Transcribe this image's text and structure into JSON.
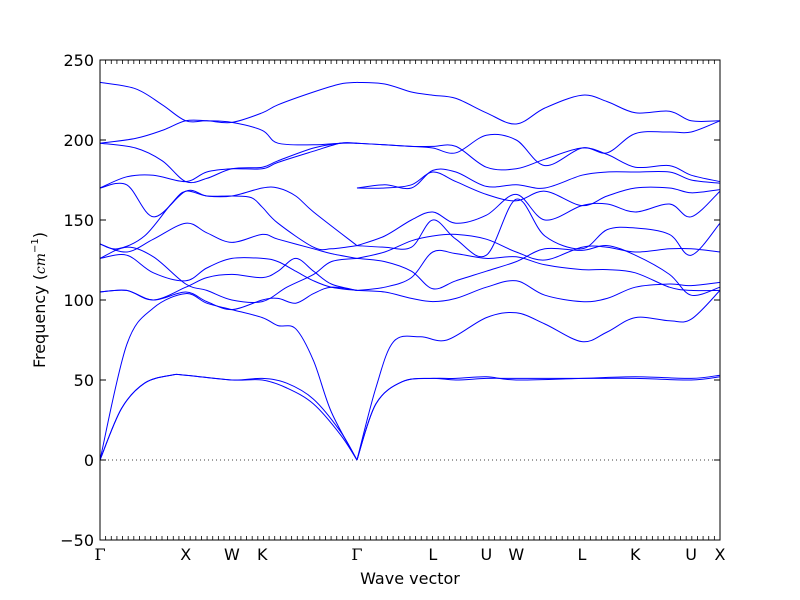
{
  "chart_data": {
    "type": "line",
    "xlabel": "Wave vector",
    "ylabel_text": "Frequency (",
    "ylabel_unit": "cm",
    "ylabel_exp": "−1",
    "ylabel_close": ")",
    "ylim": [
      -50,
      250
    ],
    "yticks": [
      -50,
      0,
      50,
      100,
      150,
      200,
      250
    ],
    "ytick_labels": [
      "−50",
      "0",
      "50",
      "100",
      "150",
      "200",
      "250"
    ],
    "x_range": [
      0,
      3.484
    ],
    "high_symmetry_points": [
      {
        "label": "Γ",
        "x": 0.0
      },
      {
        "label": "X",
        "x": 0.482
      },
      {
        "label": "W",
        "x": 0.741
      },
      {
        "label": "K",
        "x": 0.912
      },
      {
        "label": "Γ",
        "x": 1.444
      },
      {
        "label": "L",
        "x": 1.87
      },
      {
        "label": "U",
        "x": 2.171
      },
      {
        "label": "W",
        "x": 2.339
      },
      {
        "label": "L",
        "x": 2.708
      },
      {
        "label": "K",
        "x": 3.008
      },
      {
        "label": "U",
        "x": 3.322
      },
      {
        "label": "X",
        "x": 3.484
      }
    ],
    "zero_line": true,
    "line_color": "#0000ff",
    "series": [
      {
        "x": [
          0.0,
          0.12,
          0.25,
          0.4,
          0.482,
          0.741,
          0.912,
          1.05,
          1.2,
          1.35,
          1.444
        ],
        "values": [
          0,
          32,
          48,
          53,
          53,
          50,
          51,
          48,
          38,
          18,
          0
        ]
      },
      {
        "x": [
          0.0,
          0.12,
          0.25,
          0.4,
          0.482,
          0.741,
          0.912,
          1.05,
          1.2,
          1.35,
          1.444
        ],
        "values": [
          0,
          32,
          48,
          53,
          53,
          50,
          50,
          45,
          35,
          16,
          0
        ]
      },
      {
        "x": [
          0.0,
          0.15,
          0.3,
          0.482,
          0.6,
          0.741,
          0.912,
          1.0,
          1.1,
          1.2,
          1.3,
          1.444
        ],
        "values": [
          0,
          72,
          95,
          104,
          98,
          94,
          89,
          84,
          82,
          62,
          30,
          0
        ]
      },
      {
        "x": [
          1.444,
          1.55,
          1.7,
          1.87,
          2.0,
          2.171,
          2.339,
          2.708,
          3.008,
          3.322,
          3.484
        ],
        "values": [
          0,
          35,
          49,
          51,
          51,
          52,
          50,
          51,
          52,
          51,
          53
        ]
      },
      {
        "x": [
          1.444,
          1.55,
          1.7,
          1.87,
          2.0,
          2.171,
          2.339,
          2.708,
          3.008,
          3.322,
          3.484
        ],
        "values": [
          0,
          35,
          49,
          51,
          50,
          51,
          51,
          51,
          51,
          50,
          52
        ]
      },
      {
        "x": [
          1.444,
          1.55,
          1.65,
          1.8,
          1.95,
          2.171,
          2.339,
          2.5,
          2.708,
          2.85,
          3.008,
          3.2,
          3.322,
          3.484
        ],
        "values": [
          0,
          45,
          74,
          77,
          75,
          89,
          92,
          85,
          74,
          80,
          89,
          87,
          88,
          106
        ]
      },
      {
        "x": [
          0.0,
          0.15,
          0.3,
          0.482,
          0.6,
          0.741,
          0.912,
          1.0,
          1.1,
          1.2,
          1.3,
          1.444
        ],
        "values": [
          105,
          106,
          100,
          108,
          114,
          116,
          114,
          118,
          126,
          118,
          110,
          106
        ]
      },
      {
        "x": [
          0.0,
          0.15,
          0.3,
          0.482,
          0.6,
          0.741,
          0.912,
          1.0,
          1.1,
          1.2,
          1.3,
          1.444
        ],
        "values": [
          105,
          106,
          100,
          105,
          99,
          94,
          100,
          101,
          98,
          104,
          108,
          106
        ]
      },
      {
        "x": [
          0.0,
          0.15,
          0.3,
          0.482,
          0.6,
          0.741,
          0.912,
          1.0,
          1.1,
          1.2,
          1.3,
          1.444
        ],
        "values": [
          126,
          128,
          117,
          112,
          120,
          126,
          126,
          124,
          118,
          112,
          108,
          106
        ]
      },
      {
        "x": [
          0.0,
          0.15,
          0.3,
          0.482,
          0.6,
          0.741,
          0.912,
          1.05,
          1.2,
          1.3,
          1.444
        ],
        "values": [
          126,
          133,
          127,
          110,
          106,
          100,
          99,
          108,
          116,
          124,
          126
        ]
      },
      {
        "x": [
          0.0,
          0.15,
          0.3,
          0.482,
          0.6,
          0.741,
          0.912,
          1.0,
          1.2,
          1.3,
          1.444
        ],
        "values": [
          135,
          130,
          138,
          148,
          142,
          136,
          141,
          138,
          132,
          129,
          126
        ]
      },
      {
        "x": [
          0.0,
          0.1,
          0.25,
          0.4,
          0.482,
          0.6,
          0.741,
          0.85,
          0.912,
          1.0,
          1.2,
          1.3,
          1.444
        ],
        "values": [
          135,
          132,
          140,
          160,
          168,
          165,
          165,
          164,
          158,
          148,
          133,
          132,
          134
        ]
      },
      {
        "x": [
          0.0,
          0.15,
          0.3,
          0.482,
          0.6,
          0.741,
          0.912,
          1.0,
          1.1,
          1.2,
          1.444
        ],
        "values": [
          170,
          172,
          152,
          168,
          165,
          165,
          170,
          170,
          165,
          155,
          134
        ]
      },
      {
        "x": [
          0.0,
          0.15,
          0.3,
          0.482,
          0.6,
          0.741,
          0.912,
          1.0,
          1.2,
          1.35,
          1.444
        ],
        "values": [
          170,
          177,
          178,
          174,
          180,
          182,
          182,
          186,
          193,
          198,
          198
        ]
      },
      {
        "x": [
          0.0,
          0.2,
          0.35,
          0.482,
          0.6,
          0.741,
          0.912,
          1.0,
          1.2,
          1.35,
          1.444
        ],
        "values": [
          198,
          195,
          187,
          174,
          176,
          182,
          183,
          187,
          195,
          198,
          198
        ]
      },
      {
        "x": [
          0.0,
          0.2,
          0.35,
          0.482,
          0.6,
          0.741,
          0.912,
          1.0,
          1.2,
          1.35,
          1.444
        ],
        "values": [
          198,
          201,
          206,
          212,
          212,
          211,
          217,
          222,
          230,
          235,
          236
        ]
      },
      {
        "x": [
          0.0,
          0.2,
          0.35,
          0.482,
          0.6,
          0.741,
          0.912,
          1.0,
          1.2,
          1.35,
          1.444
        ],
        "values": [
          236,
          232,
          222,
          212,
          212,
          211,
          206,
          198,
          197,
          198,
          198
        ]
      },
      {
        "x": [
          1.444,
          1.6,
          1.75,
          1.87,
          2.0,
          2.171,
          2.339,
          2.5,
          2.708,
          2.85,
          3.008,
          3.2,
          3.322,
          3.484
        ],
        "values": [
          106,
          105,
          101,
          99,
          101,
          108,
          112,
          103,
          99,
          101,
          108,
          110,
          109,
          111
        ]
      },
      {
        "x": [
          1.444,
          1.6,
          1.75,
          1.87,
          2.0,
          2.171,
          2.339,
          2.5,
          2.708,
          2.85,
          3.008,
          3.2,
          3.322,
          3.484
        ],
        "values": [
          106,
          108,
          114,
          130,
          129,
          126,
          127,
          122,
          119,
          119,
          117,
          108,
          106,
          106
        ]
      },
      {
        "x": [
          1.444,
          1.6,
          1.75,
          1.87,
          2.0,
          2.171,
          2.339,
          2.5,
          2.708,
          2.85,
          3.008,
          3.2,
          3.322,
          3.484
        ],
        "values": [
          126,
          124,
          118,
          107,
          112,
          118,
          124,
          132,
          131,
          134,
          128,
          116,
          103,
          108
        ]
      },
      {
        "x": [
          1.444,
          1.6,
          1.75,
          1.87,
          2.0,
          2.171,
          2.339,
          2.5,
          2.708,
          2.85,
          3.008,
          3.2,
          3.322,
          3.484
        ],
        "values": [
          126,
          130,
          137,
          140,
          141,
          138,
          130,
          125,
          133,
          133,
          130,
          132,
          132,
          130
        ]
      },
      {
        "x": [
          1.444,
          1.6,
          1.75,
          1.87,
          2.0,
          2.171,
          2.339,
          2.5,
          2.708,
          2.85,
          3.008,
          3.2,
          3.322,
          3.484
        ],
        "values": [
          134,
          133,
          133,
          150,
          138,
          128,
          163,
          140,
          132,
          144,
          145,
          141,
          128,
          148
        ]
      },
      {
        "x": [
          1.444,
          1.6,
          1.75,
          1.87,
          2.0,
          2.171,
          2.339,
          2.5,
          2.708,
          2.85,
          3.008,
          3.2,
          3.322,
          3.484
        ],
        "values": [
          134,
          140,
          150,
          155,
          148,
          153,
          166,
          150,
          159,
          160,
          155,
          160,
          152,
          168
        ]
      },
      {
        "x": [
          1.444,
          1.6,
          1.75,
          1.87,
          2.0,
          2.171,
          2.339,
          2.5,
          2.708,
          2.85,
          3.008,
          3.2,
          3.322,
          3.484
        ],
        "values": [
          170,
          170,
          172,
          180,
          174,
          166,
          162,
          168,
          159,
          165,
          170,
          170,
          167,
          169
        ]
      },
      {
        "x": [
          1.444,
          1.6,
          1.75,
          1.87,
          2.0,
          2.171,
          2.339,
          2.5,
          2.708,
          2.85,
          3.008,
          3.2,
          3.322,
          3.484
        ],
        "values": [
          170,
          172,
          170,
          181,
          180,
          171,
          172,
          170,
          178,
          180,
          180,
          180,
          175,
          173
        ]
      },
      {
        "x": [
          1.444,
          1.6,
          1.75,
          1.87,
          2.0,
          2.171,
          2.339,
          2.5,
          2.708,
          2.85,
          3.008,
          3.2,
          3.322,
          3.484
        ],
        "values": [
          198,
          197,
          196,
          196,
          196,
          183,
          182,
          188,
          195,
          191,
          183,
          184,
          178,
          174
        ]
      },
      {
        "x": [
          1.444,
          1.6,
          1.75,
          1.87,
          2.0,
          2.171,
          2.339,
          2.5,
          2.708,
          2.85,
          3.008,
          3.2,
          3.322,
          3.484
        ],
        "values": [
          198,
          197,
          196,
          195,
          192,
          203,
          200,
          184,
          195,
          192,
          204,
          205,
          205,
          212
        ]
      },
      {
        "x": [
          1.444,
          1.6,
          1.75,
          1.87,
          2.0,
          2.171,
          2.339,
          2.5,
          2.708,
          2.85,
          3.008,
          3.2,
          3.322,
          3.484
        ],
        "values": [
          236,
          235,
          230,
          228,
          226,
          217,
          210,
          220,
          228,
          224,
          217,
          218,
          212,
          212
        ]
      }
    ]
  }
}
